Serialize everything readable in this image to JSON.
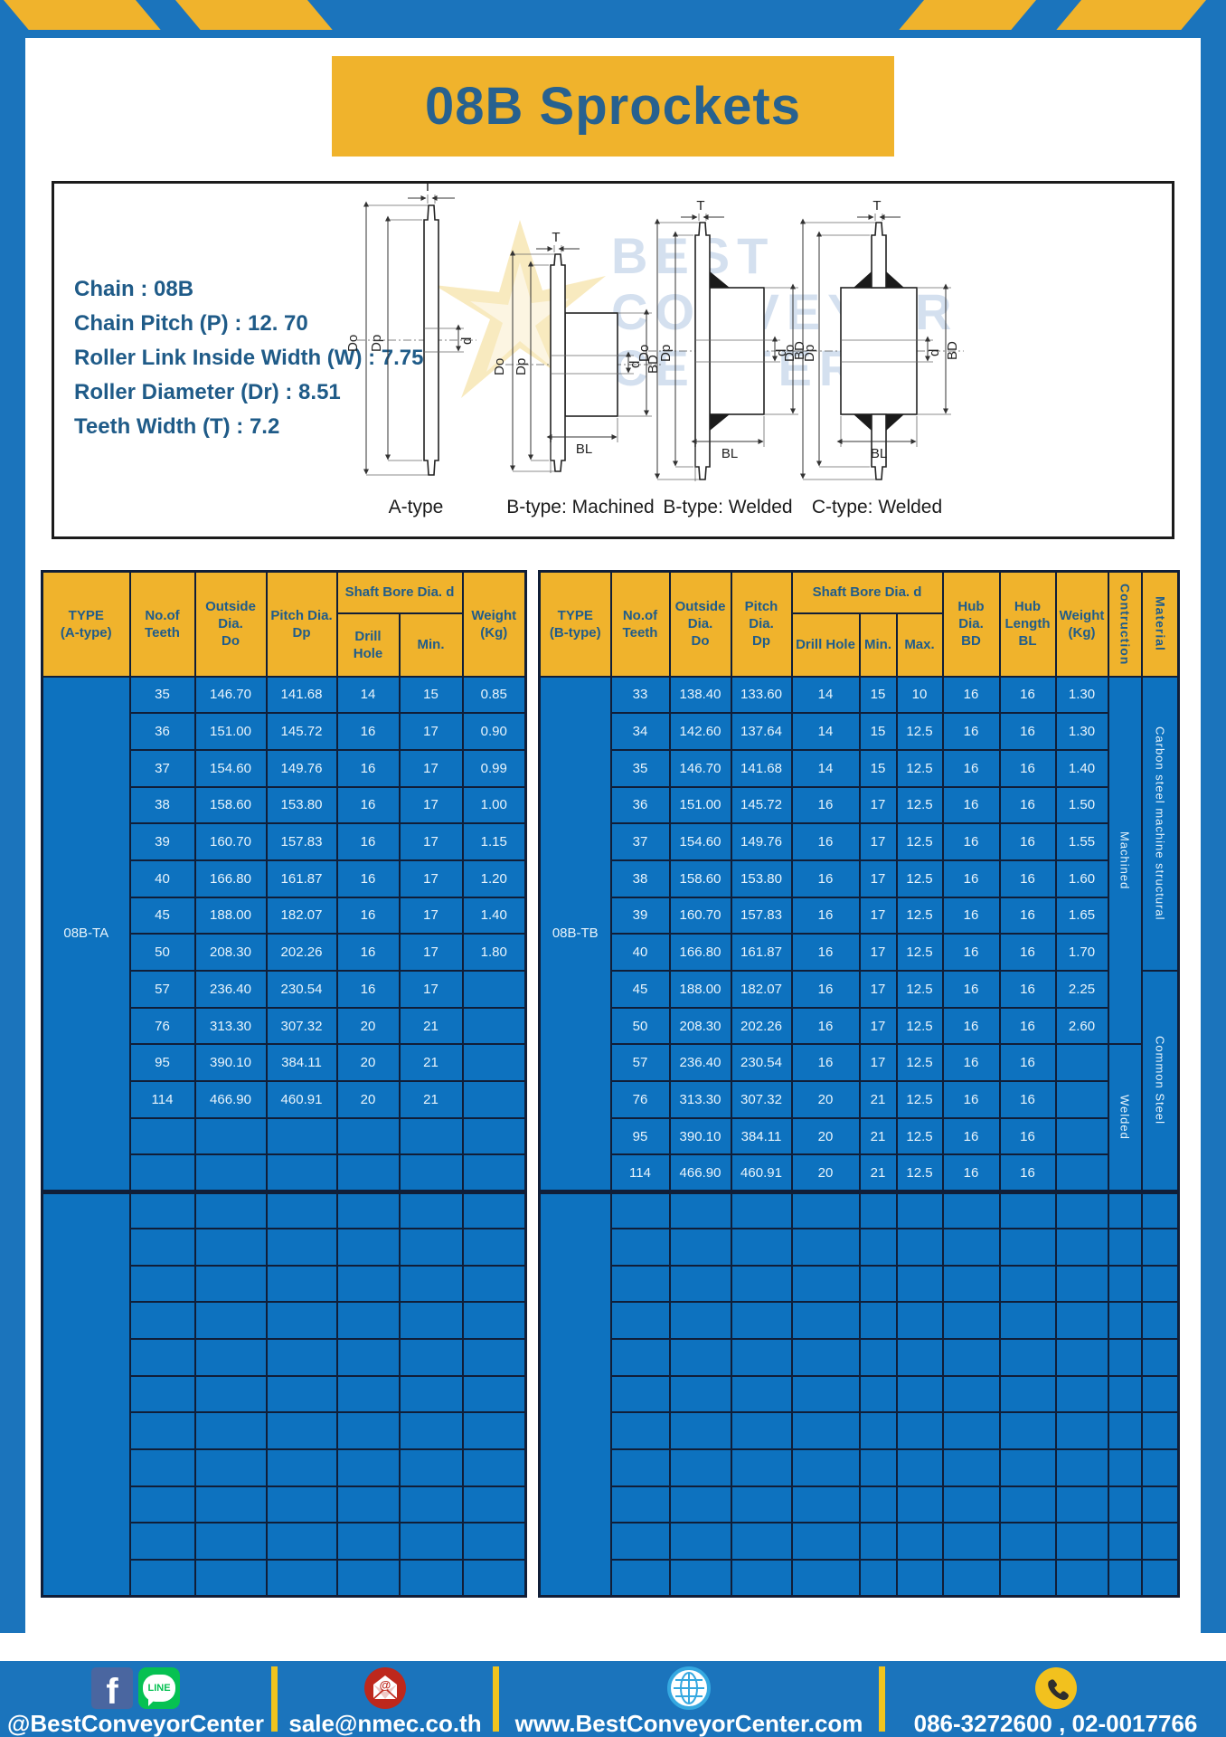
{
  "page": {
    "title": "08B Sprockets"
  },
  "specs": {
    "lines": [
      "Chain : 08B",
      "Chain Pitch (P) : 12. 70",
      "Roller Link Inside Width (W) : 7.75",
      "Roller Diameter (Dr) : 8.51",
      "Teeth Width (T) : 7.2"
    ]
  },
  "diagrams": {
    "captions": [
      "A-type",
      "B-type: Machined",
      "B-type: Welded",
      "C-type: Welded"
    ],
    "labels": {
      "t": "T",
      "do": "Do",
      "dp": "Dp",
      "d": "d",
      "bd": "BD",
      "bl": "BL"
    }
  },
  "watermark": {
    "lines": [
      "BEST",
      "CONVEYOR",
      "CENTER"
    ]
  },
  "colors": {
    "frame_blue": "#1B74BC",
    "accent_yellow": "#F0B32C",
    "table_blue": "#0D72BF",
    "table_border": "#101E38",
    "header_text_blue": "#1F5C8B",
    "title_blue": "#27618F",
    "footer_divider_yellow": "#F0C41E"
  },
  "table_a": {
    "type_label": "08B-TA",
    "header": {
      "type": [
        "TYPE",
        "(A-type)"
      ],
      "teeth": [
        "No.of",
        "Teeth"
      ],
      "outside": [
        "Outside",
        "Dia.",
        "Do"
      ],
      "pitch": [
        "Pitch Dia.",
        "Dp"
      ],
      "shaft_bore": "Shaft Bore Dia. d",
      "shaft_bore_sub": [
        "Drill Hole",
        "Min."
      ],
      "weight": [
        "Weight",
        "(Kg)"
      ]
    },
    "rows": [
      [
        "35",
        "146.70",
        "141.68",
        "14",
        "15",
        "0.85"
      ],
      [
        "36",
        "151.00",
        "145.72",
        "16",
        "17",
        "0.90"
      ],
      [
        "37",
        "154.60",
        "149.76",
        "16",
        "17",
        "0.99"
      ],
      [
        "38",
        "158.60",
        "153.80",
        "16",
        "17",
        "1.00"
      ],
      [
        "39",
        "160.70",
        "157.83",
        "16",
        "17",
        "1.15"
      ],
      [
        "40",
        "166.80",
        "161.87",
        "16",
        "17",
        "1.20"
      ],
      [
        "45",
        "188.00",
        "182.07",
        "16",
        "17",
        "1.40"
      ],
      [
        "50",
        "208.30",
        "202.26",
        "16",
        "17",
        "1.80"
      ],
      [
        "57",
        "236.40",
        "230.54",
        "16",
        "17",
        ""
      ],
      [
        "76",
        "313.30",
        "307.32",
        "20",
        "21",
        ""
      ],
      [
        "95",
        "390.10",
        "384.11",
        "20",
        "21",
        ""
      ],
      [
        "114",
        "466.90",
        "460.91",
        "20",
        "21",
        ""
      ]
    ],
    "empty_rows_group1": 2,
    "empty_rows_group2": 11
  },
  "table_b": {
    "type_label": "08B-TB",
    "header": {
      "type": [
        "TYPE",
        "(B-type)"
      ],
      "teeth": [
        "No.of",
        "Teeth"
      ],
      "outside": [
        "Outside",
        "Dia.",
        "Do"
      ],
      "pitch": [
        "Pitch Dia.",
        "Dp"
      ],
      "shaft_bore": "Shaft Bore Dia. d",
      "shaft_bore_sub": [
        "Drill Hole",
        "Min.",
        "Max."
      ],
      "hub_dia": [
        "Hub Dia.",
        "BD"
      ],
      "hub_length": [
        "Hub",
        "Length",
        "BL"
      ],
      "weight": [
        "Weight",
        "(Kg)"
      ],
      "construction": "Contruction",
      "material": "Material"
    },
    "rows": [
      [
        "33",
        "138.40",
        "133.60",
        "14",
        "15",
        "10",
        "16",
        "16",
        "1.30"
      ],
      [
        "34",
        "142.60",
        "137.64",
        "14",
        "15",
        "12.5",
        "16",
        "16",
        "1.30"
      ],
      [
        "35",
        "146.70",
        "141.68",
        "14",
        "15",
        "12.5",
        "16",
        "16",
        "1.40"
      ],
      [
        "36",
        "151.00",
        "145.72",
        "16",
        "17",
        "12.5",
        "16",
        "16",
        "1.50"
      ],
      [
        "37",
        "154.60",
        "149.76",
        "16",
        "17",
        "12.5",
        "16",
        "16",
        "1.55"
      ],
      [
        "38",
        "158.60",
        "153.80",
        "16",
        "17",
        "12.5",
        "16",
        "16",
        "1.60"
      ],
      [
        "39",
        "160.70",
        "157.83",
        "16",
        "17",
        "12.5",
        "16",
        "16",
        "1.65"
      ],
      [
        "40",
        "166.80",
        "161.87",
        "16",
        "17",
        "12.5",
        "16",
        "16",
        "1.70"
      ],
      [
        "45",
        "188.00",
        "182.07",
        "16",
        "17",
        "12.5",
        "16",
        "16",
        "2.25"
      ],
      [
        "50",
        "208.30",
        "202.26",
        "16",
        "17",
        "12.5",
        "16",
        "16",
        "2.60"
      ],
      [
        "57",
        "236.40",
        "230.54",
        "16",
        "17",
        "12.5",
        "16",
        "16",
        ""
      ],
      [
        "76",
        "313.30",
        "307.32",
        "20",
        "21",
        "12.5",
        "16",
        "16",
        ""
      ],
      [
        "95",
        "390.10",
        "384.11",
        "20",
        "21",
        "12.5",
        "16",
        "16",
        ""
      ],
      [
        "114",
        "466.90",
        "460.91",
        "20",
        "21",
        "12.5",
        "16",
        "16",
        ""
      ]
    ],
    "construction_spans": [
      {
        "label": "Machined",
        "span": 10
      },
      {
        "label": "Welded",
        "span": 4
      }
    ],
    "material_spans": [
      {
        "label": "Carbon steel machine structural",
        "span": 8
      },
      {
        "label": "Common Steel",
        "span": 6
      }
    ],
    "empty_rows_group2": 11
  },
  "footer": {
    "facebook_line_handle": "@BestConveyorCenter",
    "email": "sale@nmec.co.th",
    "website": "www.BestConveyorCenter.com",
    "phones": "086-3272600 , 02-0017766"
  }
}
